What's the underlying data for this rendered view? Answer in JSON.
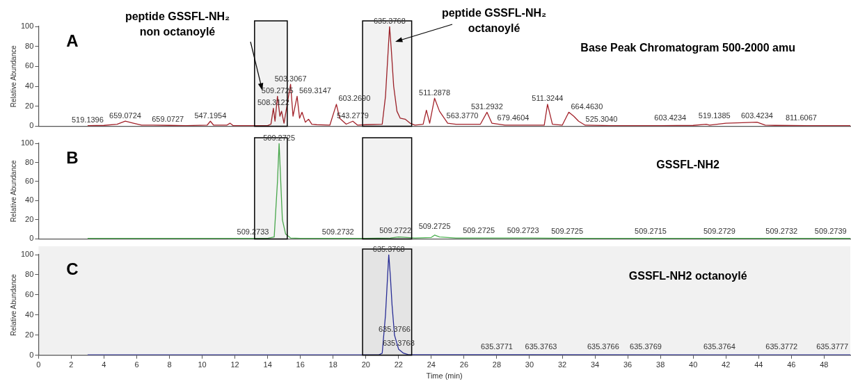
{
  "chart_data": [
    {
      "type": "line",
      "title": "A",
      "subtitle": "Base Peak Chromatogram 500-2000 amu",
      "ylabel": "Relative Abundance",
      "xlim": [
        0,
        49.6
      ],
      "xticks": [
        0,
        2,
        4,
        6,
        8,
        10,
        12,
        14,
        16,
        18,
        20,
        22,
        24,
        26,
        28,
        30,
        32,
        34,
        36,
        38,
        40,
        42,
        44,
        46,
        48
      ],
      "ylim": [
        0,
        100
      ],
      "yticks": [
        0,
        20,
        40,
        60,
        80,
        100
      ],
      "grid": false,
      "legend": false,
      "tick_labels": "y",
      "marker": "none",
      "line_style": "solid",
      "series": [
        {
          "color": "#a3222a",
          "x": [
            3,
            4,
            4.8,
            5.3,
            5.8,
            6.3,
            7,
            8,
            9,
            10.3,
            10.5,
            10.7,
            11.5,
            11.7,
            11.9,
            13,
            14,
            14.2,
            14.35,
            14.45,
            14.6,
            14.75,
            14.85,
            15.0,
            15.4,
            15.55,
            15.8,
            15.95,
            16.1,
            16.3,
            16.5,
            16.7,
            17,
            17.8,
            18.2,
            18.4,
            18.6,
            18.8,
            19.2,
            19.5,
            20,
            21,
            21.2,
            21.45,
            21.55,
            21.7,
            21.9,
            22.1,
            22.4,
            22.7,
            23,
            23.5,
            23.7,
            23.9,
            24.2,
            24.5,
            25,
            25.5,
            26.5,
            27,
            27.4,
            27.7,
            28.5,
            30,
            30.9,
            31.1,
            31.4,
            32,
            32.4,
            32.7,
            33,
            33.4,
            35,
            38,
            40,
            40.8,
            41,
            42,
            43,
            43.9,
            44.4,
            45,
            47,
            49.6
          ],
          "values": [
            0.5,
            0.8,
            2,
            5,
            3,
            1,
            1,
            0.8,
            0.5,
            1,
            5,
            1,
            1,
            3,
            0.5,
            0.5,
            0.5,
            2,
            18,
            5,
            30,
            10,
            15,
            3,
            42,
            10,
            30,
            8,
            14,
            4,
            7,
            2,
            1.5,
            1,
            22,
            8,
            5,
            2,
            5,
            1,
            1.5,
            2,
            30,
            100,
            78,
            40,
            15,
            8,
            7,
            3,
            1,
            2,
            16,
            3,
            28,
            15,
            3,
            2,
            2,
            2,
            14,
            3,
            1,
            1,
            1,
            22,
            2,
            1,
            14,
            10,
            5,
            1,
            0.5,
            0.5,
            0.8,
            2,
            1,
            3,
            3.5,
            4,
            1,
            0.8,
            0.5,
            0.5
          ]
        }
      ],
      "bands": [
        {
          "axis": "x",
          "from": 13.2,
          "to": 15.2,
          "color": "#000000"
        },
        {
          "axis": "x",
          "from": 19.8,
          "to": 22.8,
          "color": "#000000"
        }
      ],
      "annotations": [
        "peptide GSSFL-NH₂ non octanoylé",
        "peptide GSSFL-NH₂ octanoylé",
        {
          "text": "519.1396",
          "x": 3,
          "y": 0.5
        },
        {
          "text": "659.0724",
          "x": 5.3,
          "y": 5
        },
        {
          "text": "659.0727",
          "x": 7.9,
          "y": 1.5
        },
        {
          "text": "547.1954",
          "x": 10.5,
          "y": 5
        },
        {
          "text": "508.3122",
          "x": 14.35,
          "y": 18
        },
        {
          "text": "509.2725",
          "x": 14.6,
          "y": 30
        },
        {
          "text": "503.3067",
          "x": 15.4,
          "y": 42
        },
        {
          "text": "569.3147",
          "x": 15.8,
          "y": 30
        },
        {
          "text": "603.2690",
          "x": 18.2,
          "y": 22
        },
        {
          "text": "543.2779",
          "x": 19.2,
          "y": 5
        },
        {
          "text": "635.3768",
          "x": 21.45,
          "y": 100
        },
        {
          "text": "511.2878",
          "x": 24.2,
          "y": 28
        },
        {
          "text": "563.3770",
          "x": 25.9,
          "y": 5
        },
        {
          "text": "531.2932",
          "x": 27.4,
          "y": 14
        },
        {
          "text": "679.4604",
          "x": 29.0,
          "y": 3
        },
        {
          "text": "511.3244",
          "x": 31.1,
          "y": 22
        },
        {
          "text": "664.4630",
          "x": 32.4,
          "y": 14
        },
        {
          "text": "525.3040",
          "x": 34.4,
          "y": 1.5
        },
        {
          "text": "603.4234",
          "x": 38.6,
          "y": 3
        },
        {
          "text": "519.1385",
          "x": 41.3,
          "y": 5
        },
        {
          "text": "603.4234",
          "x": 43.9,
          "y": 5
        },
        {
          "text": "811.6067",
          "x": 46.6,
          "y": 3
        }
      ]
    },
    {
      "type": "line",
      "title": "B",
      "subtitle": "GSSFL-NH2",
      "ylabel": "Relative Abundance",
      "xlim": [
        0,
        49.6
      ],
      "xticks": [
        0,
        2,
        4,
        6,
        8,
        10,
        12,
        14,
        16,
        18,
        20,
        22,
        24,
        26,
        28,
        30,
        32,
        34,
        36,
        38,
        40,
        42,
        44,
        46,
        48
      ],
      "ylim": [
        0,
        100
      ],
      "yticks": [
        0,
        20,
        40,
        60,
        80,
        100
      ],
      "grid": false,
      "legend": false,
      "tick_labels": "y",
      "marker": "none",
      "line_style": "solid",
      "series": [
        {
          "color": "#4cb050",
          "x": [
            3,
            14,
            14.4,
            14.6,
            14.7,
            14.8,
            14.9,
            15.1,
            15.4,
            16,
            20,
            21.5,
            22,
            23,
            24,
            24.2,
            24.5,
            25.5,
            27,
            30,
            33,
            49.6
          ],
          "values": [
            0.5,
            0.5,
            2,
            60,
            100,
            60,
            20,
            5,
            1,
            0.5,
            0.5,
            1,
            2,
            1,
            1.5,
            4,
            2,
            1,
            1,
            1,
            0.5,
            0.5
          ]
        }
      ],
      "bands": [
        {
          "axis": "x",
          "from": 13.2,
          "to": 15.2,
          "color": "#000000"
        },
        {
          "axis": "x",
          "from": 19.8,
          "to": 22.8,
          "color": "#000000"
        }
      ],
      "annotations": [
        {
          "text": "509.2725",
          "x": 14.7,
          "y": 100
        },
        {
          "text": "509.2733",
          "x": 13.1,
          "y": 1.5
        },
        {
          "text": "509.2732",
          "x": 18.3,
          "y": 1.5
        },
        {
          "text": "509.2722",
          "x": 21.8,
          "y": 3
        },
        {
          "text": "509.2725",
          "x": 24.2,
          "y": 7
        },
        {
          "text": "509.2725",
          "x": 26.9,
          "y": 3
        },
        {
          "text": "509.2723",
          "x": 29.6,
          "y": 3
        },
        {
          "text": "509.2725",
          "x": 32.3,
          "y": 2
        },
        {
          "text": "509.2715",
          "x": 37.4,
          "y": 2
        },
        {
          "text": "509.2729",
          "x": 41.6,
          "y": 2
        },
        {
          "text": "509.2732",
          "x": 45.4,
          "y": 2
        },
        {
          "text": "509.2739",
          "x": 48.4,
          "y": 2
        }
      ]
    },
    {
      "type": "line",
      "title": "C",
      "subtitle": "GSSFL-NH2 octanoylé",
      "xlabel": "Time (min)",
      "ylabel": "Relative Abundance",
      "xlim": [
        0,
        49.6
      ],
      "xticks": [
        0,
        2,
        4,
        6,
        8,
        10,
        12,
        14,
        16,
        18,
        20,
        22,
        24,
        26,
        28,
        30,
        32,
        34,
        36,
        38,
        40,
        42,
        44,
        46,
        48
      ],
      "ylim": [
        0,
        100
      ],
      "yticks": [
        0,
        20,
        40,
        60,
        80,
        100
      ],
      "grid": false,
      "legend": false,
      "marker": "none",
      "line_style": "solid",
      "series": [
        {
          "color": "#2a2f9e",
          "x": [
            3,
            20.8,
            21.0,
            21.2,
            21.4,
            21.5,
            21.6,
            21.75,
            22,
            22.3,
            22.6,
            49.6
          ],
          "values": [
            0.3,
            0.3,
            2,
            40,
            100,
            78,
            50,
            20,
            6,
            2,
            0.5,
            0.3
          ]
        }
      ],
      "bands": [
        {
          "axis": "x",
          "from": 19.8,
          "to": 22.8,
          "color": "#000000"
        }
      ],
      "annotations": [
        {
          "text": "635.3768",
          "x": 21.4,
          "y": 100
        },
        {
          "text": "635.3766",
          "x": 21.75,
          "y": 20
        },
        {
          "text": "635.3768",
          "x": 22,
          "y": 6
        },
        {
          "text": "635.3771",
          "x": 28.0,
          "y": 3
        },
        {
          "text": "635.3763",
          "x": 30.7,
          "y": 3
        },
        {
          "text": "635.3766",
          "x": 34.5,
          "y": 3
        },
        {
          "text": "635.3769",
          "x": 37.1,
          "y": 3
        },
        {
          "text": "635.3764",
          "x": 41.6,
          "y": 3
        },
        {
          "text": "635.3772",
          "x": 45.4,
          "y": 3
        },
        {
          "text": "635.3777",
          "x": 48.5,
          "y": 3
        }
      ]
    }
  ]
}
